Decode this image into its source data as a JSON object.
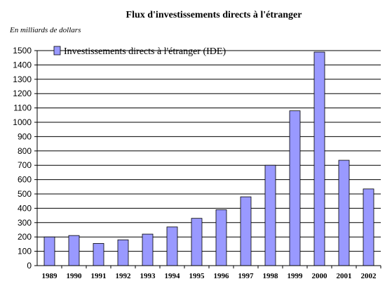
{
  "chart_data": {
    "type": "bar",
    "title": "Flux d'investissements directs à l'étranger",
    "unit_label": "En milliards de dollars",
    "xlabel": "",
    "ylabel": "",
    "ylim": [
      0,
      1500
    ],
    "y_tick_step": 100,
    "grid": true,
    "legend_position": "top-left",
    "categories": [
      "1989",
      "1990",
      "1991",
      "1992",
      "1993",
      "1994",
      "1995",
      "1996",
      "1997",
      "1998",
      "1999",
      "2000",
      "2001",
      "2002"
    ],
    "series": [
      {
        "name": "Investissements directs à l'étranger (IDE)",
        "color": "#9999ff",
        "values": [
          200,
          210,
          155,
          180,
          220,
          270,
          330,
          390,
          480,
          700,
          1080,
          1490,
          735,
          535
        ]
      }
    ]
  }
}
